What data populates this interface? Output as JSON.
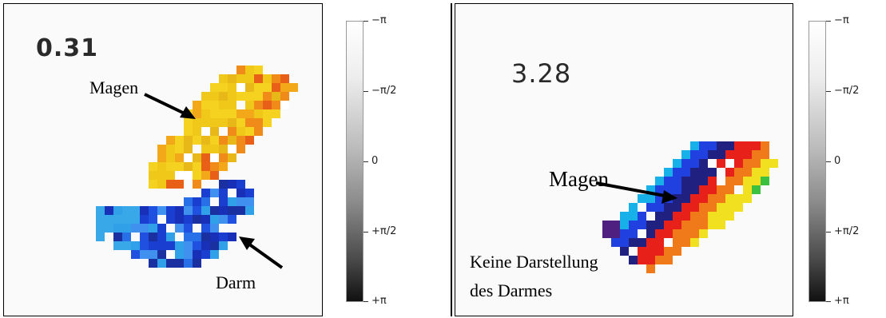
{
  "left_panel": {
    "time_value": "0.31",
    "label_stomach": "Magen",
    "label_intestine": "Darm"
  },
  "right_panel": {
    "time_value": "3.28",
    "label_stomach": "Magen",
    "label_no_intestine_line1": "Keine Darstellung",
    "label_no_intestine_line2": "des Darmes"
  },
  "colorbar": {
    "ticks": [
      "−π",
      "−π/2",
      "0",
      "+π/2",
      "+π"
    ]
  },
  "colors": {
    "stomach_left": "#f0c020",
    "intestine_left": "#1a3fd0",
    "phase_bands": [
      "#e8201a",
      "#f07a1a",
      "#f0e020",
      "#3cc040",
      "#18b0e8",
      "#2040e0",
      "#202080"
    ]
  }
}
